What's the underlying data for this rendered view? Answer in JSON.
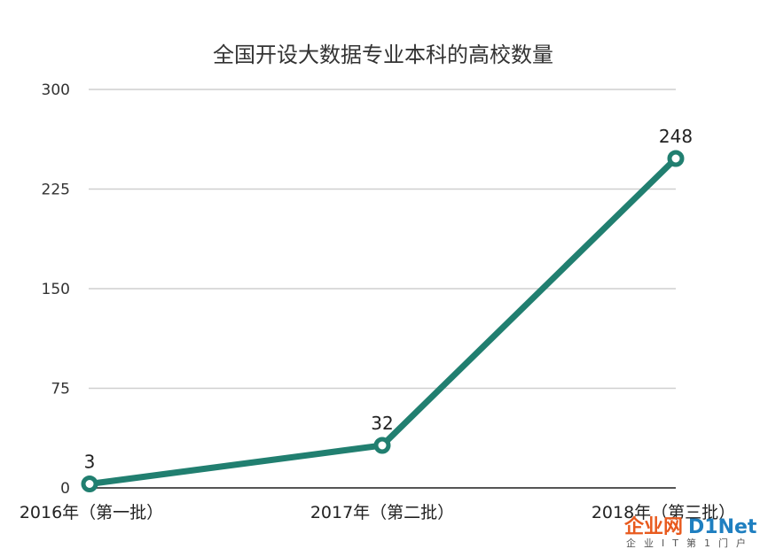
{
  "chart_data": {
    "type": "line",
    "title": "全国开设大数据专业本科的高校数量",
    "categories": [
      "2016年（第一批）",
      "2017年（第二批）",
      "2018年（第三批）"
    ],
    "values": [
      3,
      32,
      248
    ],
    "data_labels": [
      "3",
      "32",
      "248"
    ],
    "yticks": [
      "0",
      "75",
      "150",
      "225",
      "300"
    ],
    "ylim": [
      0,
      300
    ],
    "grid": true,
    "line_color": "#217f70"
  },
  "watermark": {
    "brand_cn": "企业网",
    "brand_en": "D1Net",
    "tagline": "企业IT第1门户"
  }
}
